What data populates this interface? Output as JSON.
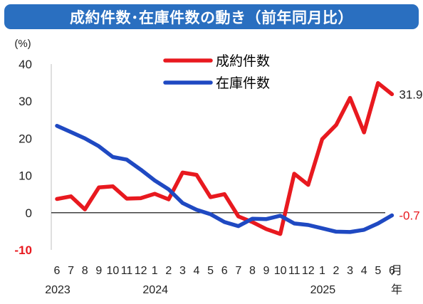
{
  "title": "成約件数･在庫件数の動き（前年同月比）",
  "colors": {
    "title_bg": "#2a6fc0",
    "series_1": "#e8191f",
    "series_2": "#1f49c2",
    "axis_text": "#222222",
    "negative_tick": "#e8191f"
  },
  "chart_data": {
    "type": "line",
    "ylabel": "(%)",
    "ylim": [
      -10,
      40
    ],
    "yticks": [
      "40",
      "30",
      "20",
      "10",
      "0",
      "-10"
    ],
    "xlabel": "月\n年",
    "x": [
      "6",
      "7",
      "8",
      "9",
      "10",
      "11",
      "12",
      "1",
      "2",
      "3",
      "4",
      "5",
      "6",
      "7",
      "8",
      "9",
      "10",
      "11",
      "12",
      "1",
      "2",
      "3",
      "4",
      "5",
      "6"
    ],
    "year_labels": [
      {
        "text": "2023",
        "index": 0
      },
      {
        "text": "2024",
        "index": 7
      },
      {
        "text": "2025",
        "index": 19
      }
    ],
    "month_unit": "月",
    "year_unit": "年",
    "legend_position": "top-center",
    "series": [
      {
        "name": "成約件数",
        "color": "#e8191f",
        "values": [
          3.7,
          4.4,
          0.9,
          6.8,
          7.1,
          3.8,
          3.9,
          5.1,
          3.6,
          10.8,
          10.2,
          4.2,
          5.0,
          -1.0,
          -2.5,
          -4.4,
          -5.7,
          10.5,
          7.5,
          19.8,
          23.6,
          30.9,
          21.6,
          34.9,
          31.9
        ],
        "end_label": "31.9"
      },
      {
        "name": "在庫件数",
        "color": "#1f49c2",
        "values": [
          23.4,
          21.7,
          20.0,
          17.9,
          15.0,
          14.3,
          11.6,
          8.7,
          6.3,
          2.6,
          0.8,
          -0.4,
          -2.5,
          -3.6,
          -1.6,
          -1.7,
          -0.8,
          -2.9,
          -3.3,
          -4.2,
          -5.1,
          -5.2,
          -4.6,
          -2.9,
          -0.7
        ],
        "end_label": "-0.7"
      }
    ]
  }
}
